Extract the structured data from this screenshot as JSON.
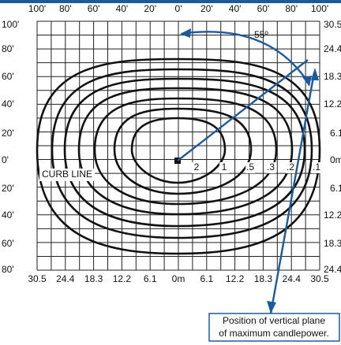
{
  "top_axis": [
    "100'",
    "80'",
    "60'",
    "40'",
    "20'",
    "0'",
    "20'",
    "40'",
    "60'",
    "80'",
    "100'"
  ],
  "bottom_axis": [
    "30.5",
    "24.4",
    "18.3",
    "12.2",
    "6.1",
    "0m",
    "6.1",
    "12.2",
    "18.3",
    "24.4",
    "30.5"
  ],
  "left_axis": [
    "100'",
    "80'",
    "60'",
    "40'",
    "20'",
    "0'",
    "20'",
    "40'",
    "60'",
    "80'"
  ],
  "right_axis": [
    "30.5",
    "24.4",
    "18.3",
    "12.2",
    "6.1",
    "0m",
    "6.1",
    "12.2",
    "18.3",
    "24.4"
  ],
  "contour_labels": [
    "2",
    "1",
    ".5",
    ".3",
    ".2",
    ".1"
  ],
  "angle_label": "55º",
  "curb_label": "CURB LINE",
  "note": [
    "Position of vertical plane",
    "of maximum candlepower."
  ]
}
